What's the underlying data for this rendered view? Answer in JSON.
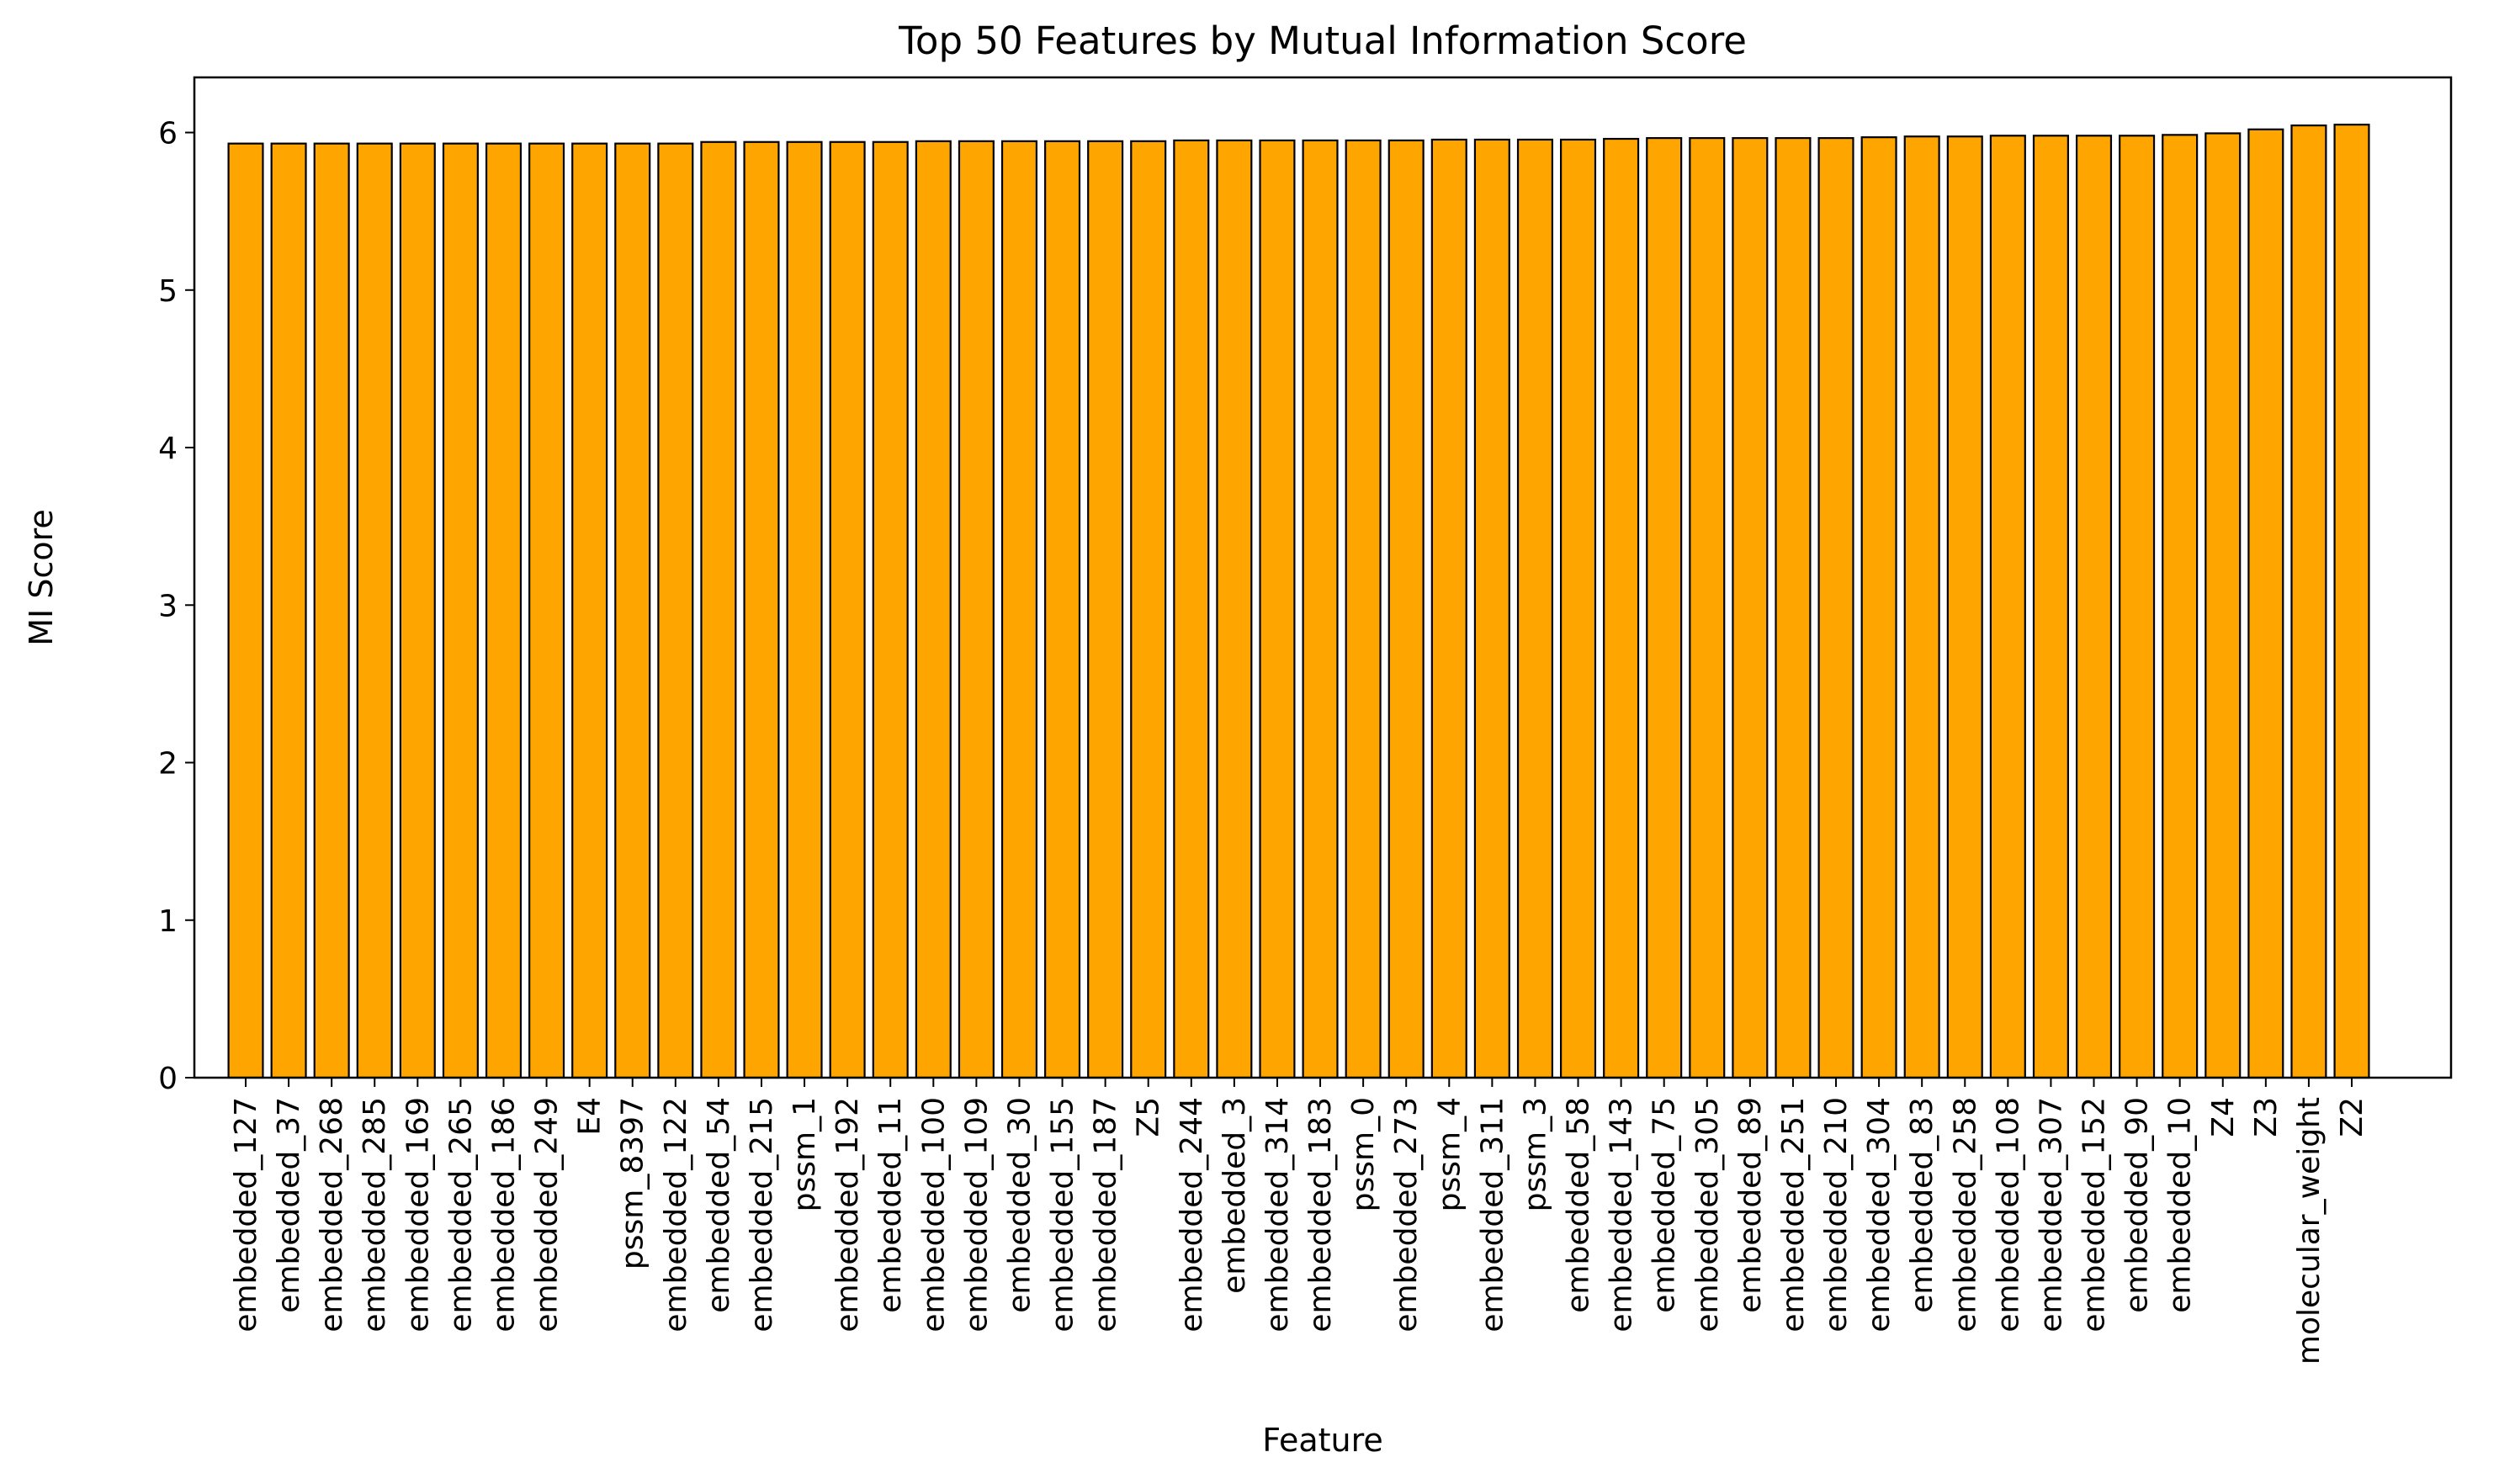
{
  "chart_data": {
    "type": "bar",
    "title": "Top 50 Features by Mutual Information Score",
    "xlabel": "Feature",
    "ylabel": "MI Score",
    "ylim": [
      0,
      6.35
    ],
    "yticks": [
      0,
      1,
      2,
      3,
      4,
      5,
      6
    ],
    "grid": false,
    "legend": "none",
    "bar_color": "#FFA500",
    "edge_color": "#000000",
    "categories": [
      "embedded_127",
      "embedded_37",
      "embedded_268",
      "embedded_285",
      "embedded_169",
      "embedded_265",
      "embedded_186",
      "embedded_249",
      "E4",
      "pssm_8397",
      "embedded_122",
      "embedded_54",
      "embedded_215",
      "pssm_1",
      "embedded_192",
      "embedded_11",
      "embedded_100",
      "embedded_109",
      "embedded_30",
      "embedded_155",
      "embedded_187",
      "Z5",
      "embedded_244",
      "embedded_3",
      "embedded_314",
      "embedded_183",
      "pssm_0",
      "embedded_273",
      "pssm_4",
      "embedded_311",
      "pssm_3",
      "embedded_58",
      "embedded_143",
      "embedded_75",
      "embedded_305",
      "embedded_89",
      "embedded_251",
      "embedded_210",
      "embedded_304",
      "embedded_83",
      "embedded_258",
      "embedded_108",
      "embedded_307",
      "embedded_152",
      "embedded_90",
      "embedded_10",
      "Z4",
      "Z3",
      "molecular_weight",
      "Z2"
    ],
    "values": [
      5.93,
      5.93,
      5.93,
      5.93,
      5.93,
      5.93,
      5.93,
      5.93,
      5.93,
      5.93,
      5.93,
      5.94,
      5.94,
      5.94,
      5.94,
      5.94,
      5.945,
      5.945,
      5.945,
      5.945,
      5.945,
      5.945,
      5.95,
      5.95,
      5.95,
      5.95,
      5.95,
      5.95,
      5.955,
      5.955,
      5.955,
      5.955,
      5.96,
      5.965,
      5.965,
      5.965,
      5.965,
      5.965,
      5.97,
      5.975,
      5.975,
      5.98,
      5.98,
      5.98,
      5.98,
      5.985,
      5.995,
      6.02,
      6.045,
      6.05
    ]
  }
}
